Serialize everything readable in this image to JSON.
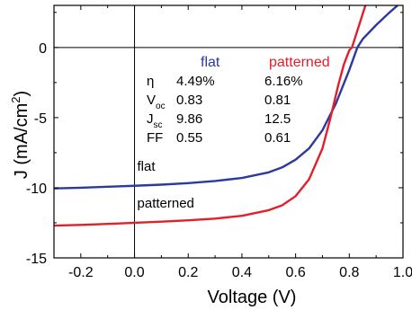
{
  "chart_data": {
    "type": "line",
    "title": "",
    "xlabel": "Voltage (V)",
    "ylabel_parts": {
      "main": "J (mA/cm",
      "sup": "2",
      "end": ")"
    },
    "xlim": [
      -0.3,
      1.0
    ],
    "ylim": [
      -15,
      3
    ],
    "xticks": [
      -0.2,
      0.0,
      0.2,
      0.4,
      0.6,
      0.8,
      1.0
    ],
    "xtick_labels": [
      "-0.2",
      "0.0",
      "0.2",
      "0.4",
      "0.6",
      "0.8",
      "1.0"
    ],
    "yticks": [
      -15,
      -10,
      -5,
      0
    ],
    "ytick_labels": [
      "-15",
      "-10",
      "-5",
      "0"
    ],
    "zero_lines": true,
    "series": [
      {
        "name": "flat",
        "color": "#2b3a9e",
        "x": [
          -0.3,
          -0.2,
          -0.1,
          0.0,
          0.1,
          0.2,
          0.3,
          0.4,
          0.5,
          0.55,
          0.6,
          0.65,
          0.7,
          0.75,
          0.8,
          0.83,
          0.85,
          0.9,
          0.95,
          0.98
        ],
        "y": [
          -10.05,
          -10.0,
          -9.93,
          -9.86,
          -9.78,
          -9.67,
          -9.52,
          -9.3,
          -8.9,
          -8.55,
          -8.0,
          -7.2,
          -5.9,
          -4.0,
          -1.6,
          0.0,
          0.6,
          1.6,
          2.5,
          3.0
        ]
      },
      {
        "name": "patterned",
        "color": "#e0202a",
        "x": [
          -0.3,
          -0.2,
          -0.1,
          0.0,
          0.1,
          0.2,
          0.3,
          0.4,
          0.5,
          0.55,
          0.6,
          0.65,
          0.7,
          0.73,
          0.76,
          0.78,
          0.8,
          0.81,
          0.83,
          0.85,
          0.86
        ],
        "y": [
          -12.7,
          -12.65,
          -12.58,
          -12.5,
          -12.42,
          -12.32,
          -12.2,
          -12.0,
          -11.6,
          -11.25,
          -10.6,
          -9.4,
          -7.2,
          -5.0,
          -2.6,
          -1.2,
          -0.2,
          0.0,
          1.2,
          2.4,
          3.0
        ]
      }
    ],
    "curve_labels": [
      {
        "text": "flat",
        "x": 0.01,
        "y": -8.8
      },
      {
        "text": "patterned",
        "x": 0.01,
        "y": -11.4
      }
    ],
    "table": {
      "headers": [
        {
          "text": "flat",
          "color": "#2b3a9e"
        },
        {
          "text": "patterned",
          "color": "#e0202a"
        }
      ],
      "rows": [
        {
          "label": "η",
          "sub": "",
          "flat": "4.49%",
          "patterned": "6.16%"
        },
        {
          "label": "V",
          "sub": "oc",
          "flat": "0.83",
          "patterned": "0.81"
        },
        {
          "label": "J",
          "sub": "sc",
          "flat": "9.86",
          "patterned": "12.5"
        },
        {
          "label": "FF",
          "sub": "",
          "flat": "0.55",
          "patterned": "0.61"
        }
      ]
    }
  }
}
